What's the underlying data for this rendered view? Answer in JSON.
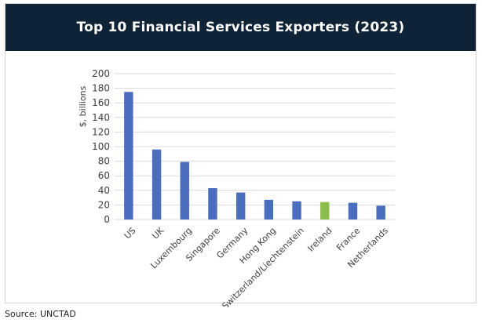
{
  "header": {
    "title": "Top 10 Financial Services Exporters (2023)"
  },
  "footer": {
    "source": "Source: UNCTAD"
  },
  "colors": {
    "header_bg": "#0f2336",
    "bar_default": "#4a6dbd",
    "bar_highlight": "#8cbd4a",
    "gridline": "#d9d9d9",
    "axis_text": "#404040"
  },
  "chart_data": {
    "type": "bar",
    "title": "Top 10 Financial Services Exporters (2023)",
    "xlabel": "",
    "ylabel": "$, billions",
    "ylim": [
      0,
      200
    ],
    "yticks": [
      0,
      20,
      40,
      60,
      80,
      100,
      120,
      140,
      160,
      180,
      200
    ],
    "grid": true,
    "legend": "none",
    "categories": [
      "US",
      "UK",
      "Luxembourg",
      "Singapore",
      "Germany",
      "Hong Kong",
      "Switzerland/Liechtenstein",
      "Ireland",
      "France",
      "Netherlands"
    ],
    "values": [
      175,
      96,
      79,
      43,
      37,
      27,
      25,
      24,
      23,
      19
    ],
    "highlight_category": "Ireland"
  }
}
